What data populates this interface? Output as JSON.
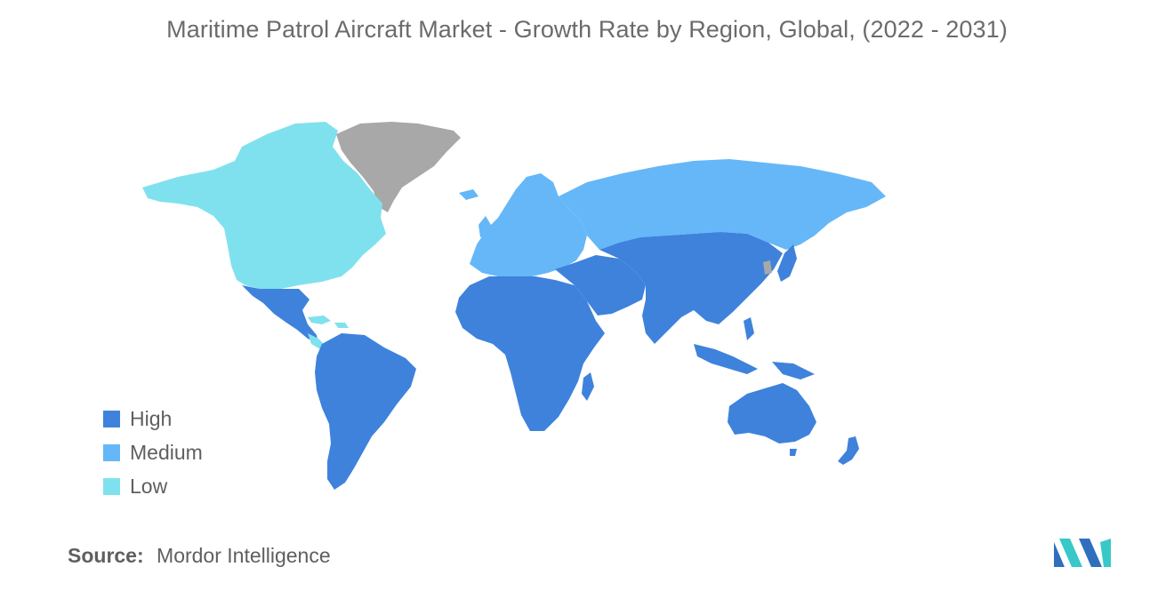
{
  "title": "Maritime Patrol Aircraft Market - Growth Rate by Region, Global, (2022 - 2031)",
  "legend": [
    {
      "label": "High",
      "color": "#3e82dc"
    },
    {
      "label": "Medium",
      "color": "#65b7f8"
    },
    {
      "label": "Low",
      "color": "#80e1ee"
    }
  ],
  "no_data_color": "#a8a8a8",
  "regions": {
    "north_america": "Low",
    "greenland": "no data",
    "central_america": "High",
    "caribbean": "Low",
    "south_america": "High",
    "europe": "Medium",
    "russia": "Medium",
    "africa": "High",
    "middle_east": "High",
    "asia": "High",
    "japan": "High",
    "korea": "no data",
    "southeast_asia": "High",
    "oceania": "High"
  },
  "source": {
    "label": "Source:",
    "value": "Mordor Intelligence"
  },
  "logo_icon": "mordor-intelligence-logo"
}
